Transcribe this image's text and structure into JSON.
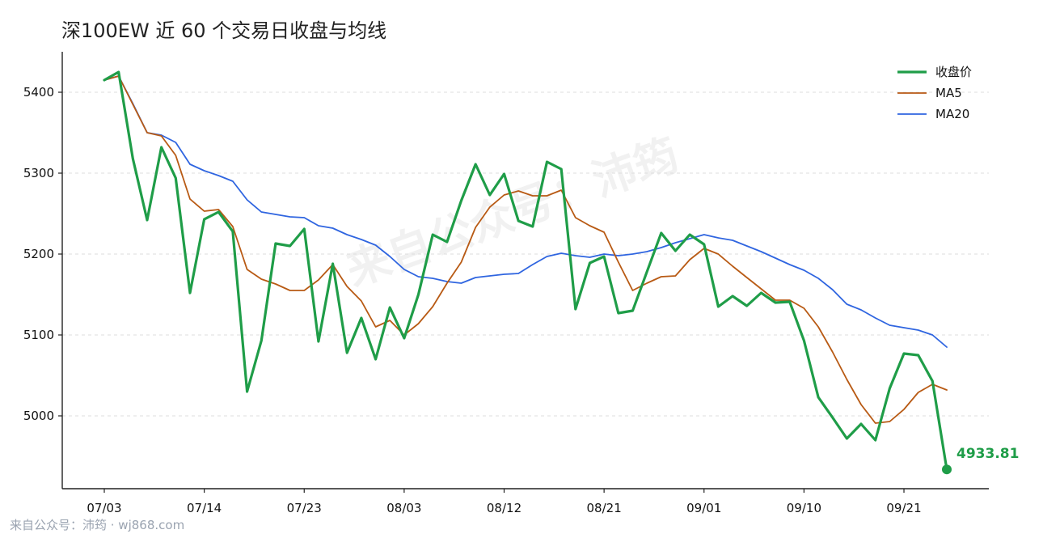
{
  "chart_data": {
    "type": "line",
    "title": "深100EW 近 60 个交易日收盘与均线",
    "xlabel": "",
    "ylabel": "",
    "ylim": [
      4910,
      5450
    ],
    "x_tick_labels": [
      "07/03",
      "07/14",
      "07/23",
      "08/03",
      "08/12",
      "08/21",
      "09/01",
      "09/10",
      "09/21"
    ],
    "x_tick_index": [
      0,
      7,
      14,
      21,
      28,
      35,
      42,
      49,
      56
    ],
    "y_ticks": [
      5000,
      5100,
      5200,
      5300,
      5400
    ],
    "grid": "horizontal dashed",
    "legend_position": "top-right",
    "series": [
      {
        "name": "收盘价",
        "color": "#1f9d48",
        "values": [
          5415,
          5425,
          5318,
          5242,
          5332,
          5294,
          5152,
          5243,
          5252,
          5228,
          5030,
          5093,
          5213,
          5210,
          5231,
          5092,
          5188,
          5078,
          5121,
          5070,
          5134,
          5096,
          5150,
          5224,
          5215,
          5266,
          5311,
          5273,
          5299,
          5241,
          5234,
          5314,
          5305,
          5132,
          5189,
          5197,
          5127,
          5130,
          5178,
          5226,
          5204,
          5224,
          5212,
          5135,
          5148,
          5136,
          5152,
          5140,
          5141,
          5093,
          5023,
          4998,
          4972,
          4990,
          4970,
          5034,
          5077,
          5075,
          5043,
          4933.81
        ]
      },
      {
        "name": "MA5",
        "color": "#b85a14",
        "values": [
          5415,
          5420,
          5385,
          5350,
          5346,
          5322,
          5268,
          5253,
          5255,
          5234,
          5181,
          5169,
          5163,
          5155,
          5155,
          5168,
          5187,
          5160,
          5142,
          5110,
          5118,
          5100,
          5114,
          5135,
          5164,
          5190,
          5233,
          5258,
          5273,
          5278,
          5272,
          5272,
          5279,
          5245,
          5235,
          5227,
          5190,
          5155,
          5164,
          5172,
          5173,
          5193,
          5207,
          5200,
          5185,
          5171,
          5157,
          5143,
          5143,
          5133,
          5110,
          5079,
          5045,
          5014,
          4991,
          4993,
          5008,
          5029,
          5039,
          5032
        ]
      },
      {
        "name": "MA20",
        "color": "#2f65e0",
        "values": [
          5415,
          5420,
          5386,
          5350,
          5347,
          5338,
          5311,
          5303,
          5297,
          5290,
          5267,
          5252,
          5249,
          5246,
          5245,
          5235,
          5232,
          5224,
          5218,
          5211,
          5197,
          5181,
          5172,
          5170,
          5166,
          5164,
          5171,
          5173,
          5175,
          5176,
          5187,
          5197,
          5201,
          5198,
          5196,
          5200,
          5198,
          5200,
          5203,
          5208,
          5214,
          5219,
          5224,
          5220,
          5217,
          5210,
          5203,
          5195,
          5187,
          5180,
          5170,
          5156,
          5138,
          5131,
          5121,
          5112,
          5109,
          5106,
          5100,
          5085
        ]
      }
    ],
    "end_label": "4933.81"
  }
}
